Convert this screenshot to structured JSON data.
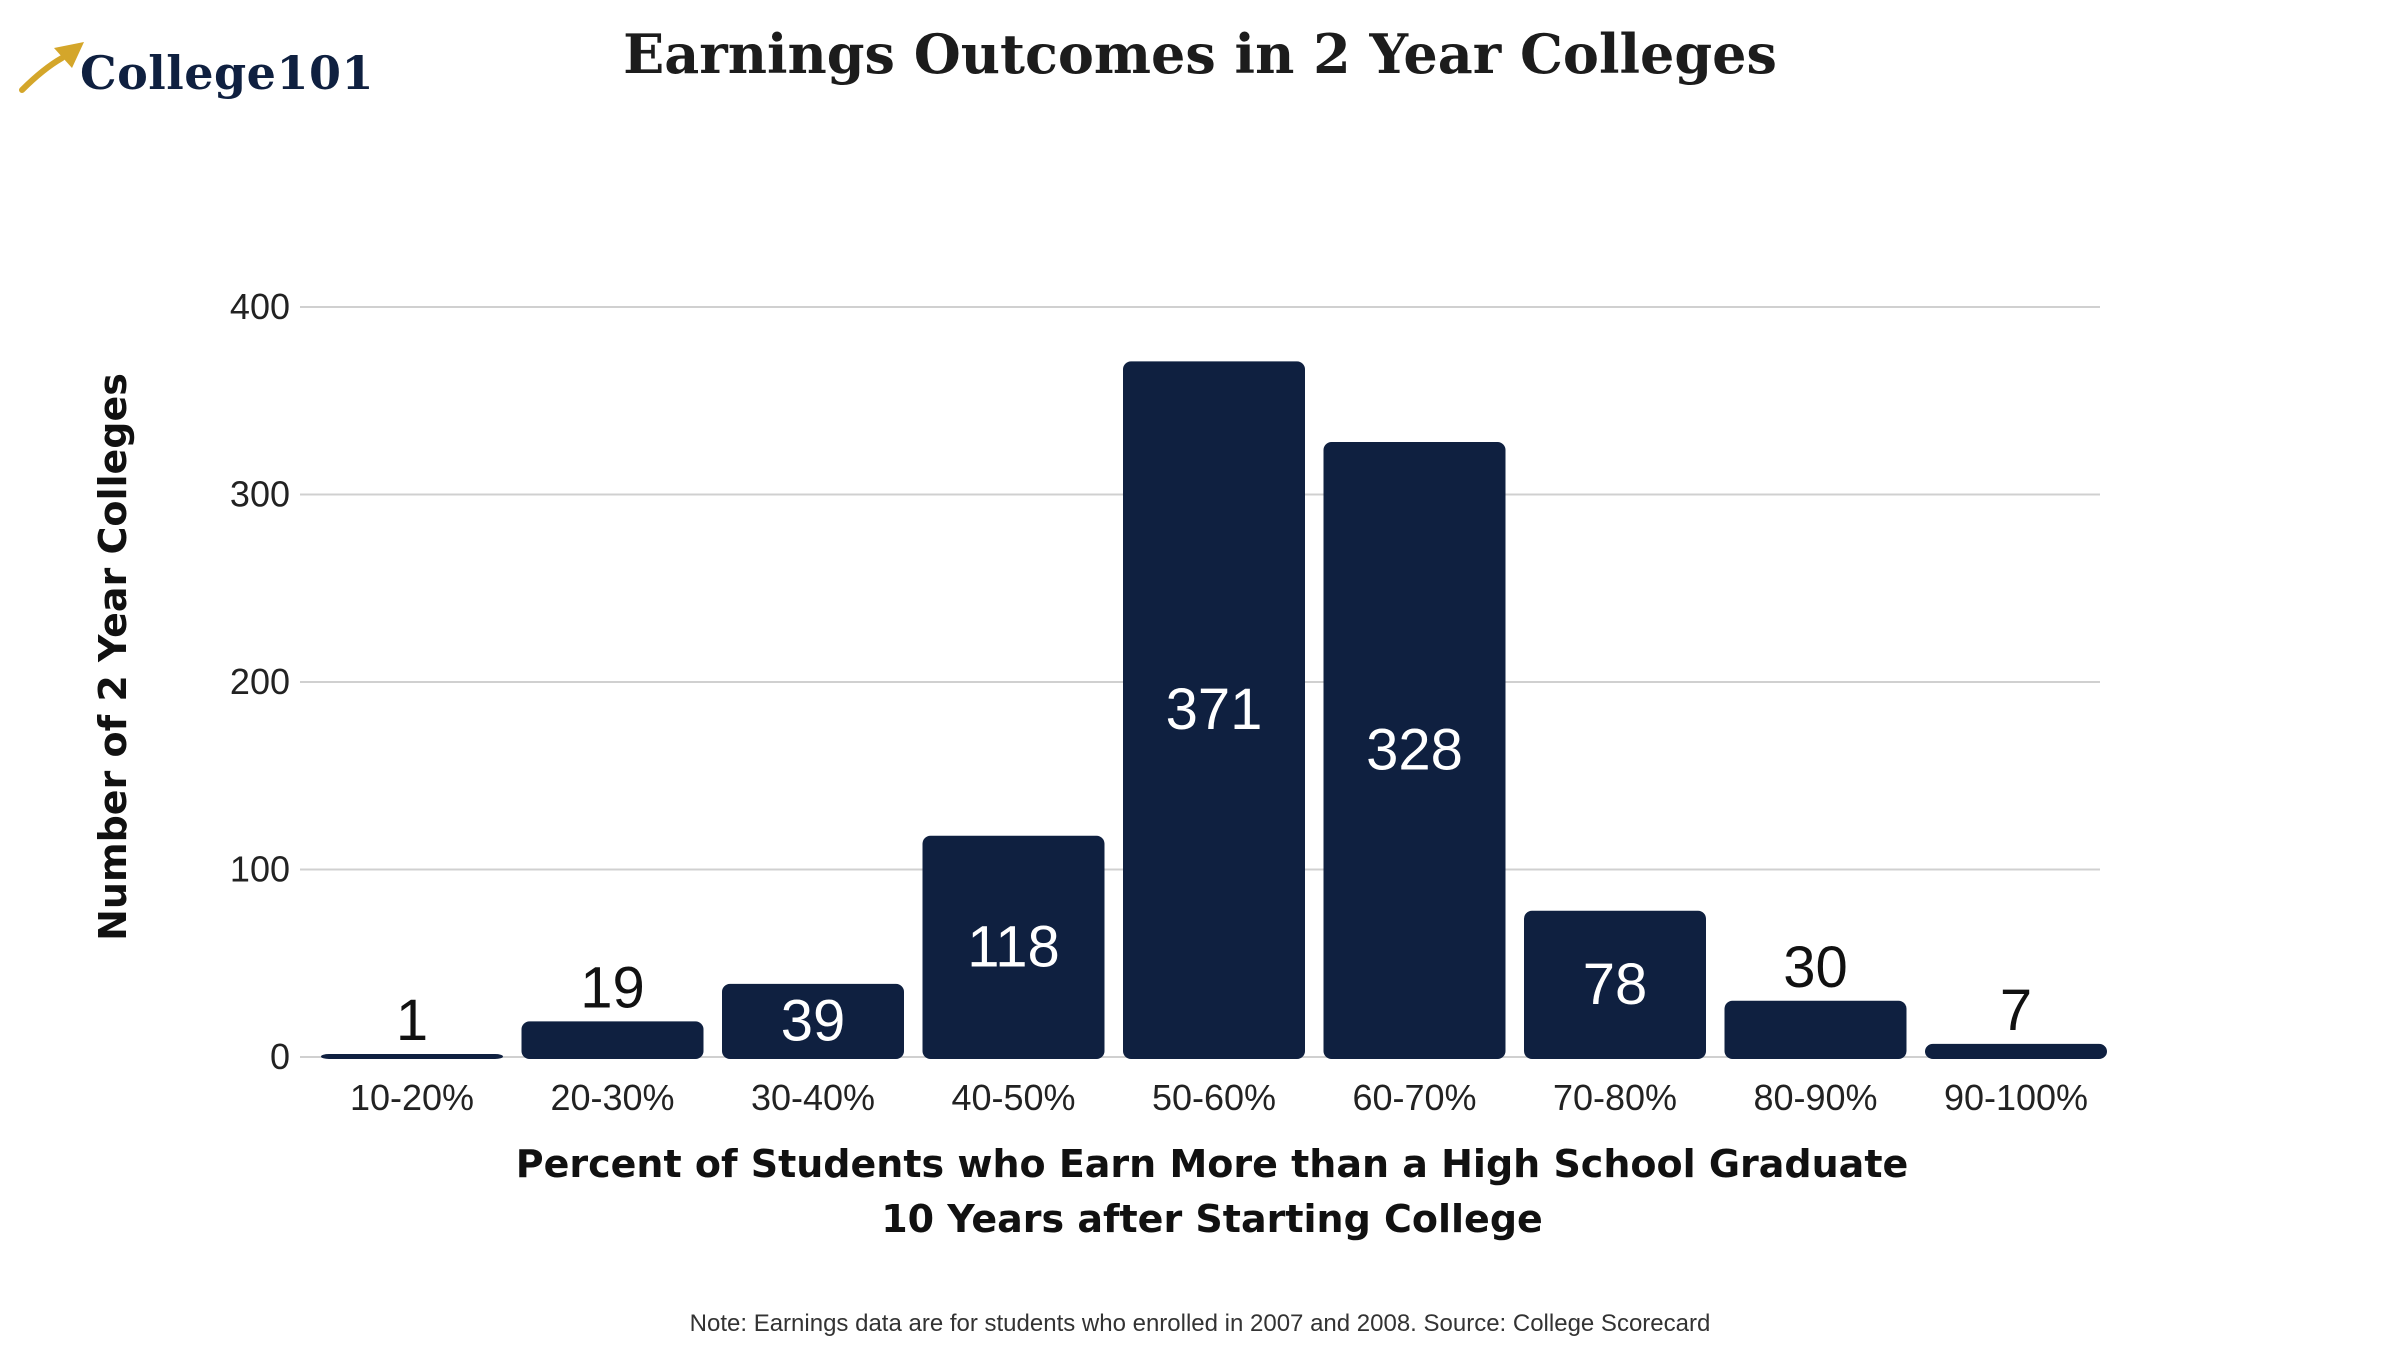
{
  "logo": {
    "text": "College101",
    "icon": "rising-arrow-icon",
    "icon_color": "#d4a62a",
    "text_color": "#0f2040"
  },
  "title": "Earnings Outcomes in 2 Year Colleges",
  "note": "Note: Earnings data are for students who enrolled in 2007 and 2008. Source: College Scorecard",
  "colors": {
    "bar": "#0f2040",
    "label_inside": "#ffffff",
    "label_outside": "#111111",
    "grid": "#d0d0d0"
  },
  "chart_data": {
    "type": "bar",
    "title": "Earnings Outcomes in 2 Year Colleges",
    "xlabel_lines": [
      "Percent of Students who Earn More than a High School Graduate",
      "10 Years after Starting College"
    ],
    "ylabel": "Number of 2 Year Colleges",
    "categories": [
      "10-20%",
      "20-30%",
      "30-40%",
      "40-50%",
      "50-60%",
      "60-70%",
      "70-80%",
      "80-90%",
      "90-100%"
    ],
    "values": [
      1,
      19,
      39,
      118,
      371,
      328,
      78,
      30,
      7
    ],
    "value_labels": [
      "1",
      "19",
      "39",
      "118",
      "371",
      "328",
      "78",
      "30",
      "7"
    ],
    "yticks": [
      0,
      100,
      200,
      300,
      400
    ],
    "ytick_labels": [
      "0",
      "100",
      "200",
      "300",
      "400"
    ],
    "ylim": [
      0,
      430
    ],
    "grid": true,
    "legend": "none"
  }
}
